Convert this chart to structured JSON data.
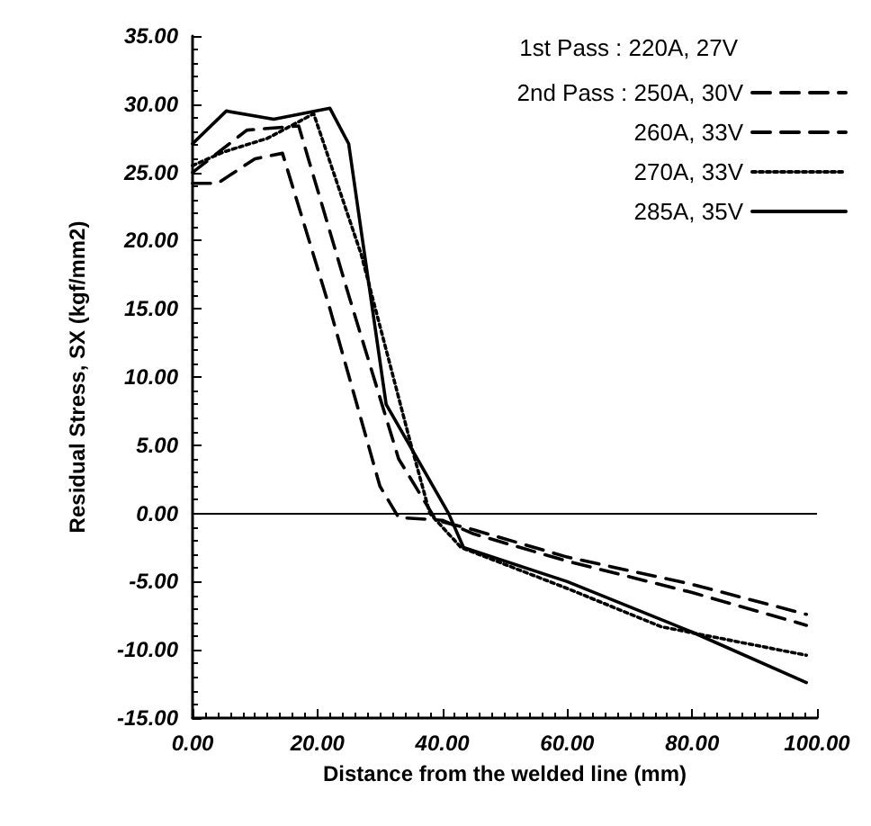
{
  "chart_data": {
    "type": "line",
    "xlabel": "Distance from the welded line (mm)",
    "ylabel": "Residual Stress, SX (kgf/mm2)",
    "legend_title": "1st Pass : 220A, 27V",
    "legend": "top right",
    "grid": false,
    "marker": "none",
    "xlim": [
      0,
      100
    ],
    "xticks": [
      {
        "value": 0,
        "label": "0.00"
      },
      {
        "value": 20,
        "label": "20.00"
      },
      {
        "value": 40,
        "label": "40.00"
      },
      {
        "value": 60,
        "label": "60.00"
      },
      {
        "value": 80,
        "label": "80.00"
      },
      {
        "value": 100,
        "label": "100.00"
      }
    ],
    "ylim": [
      -15,
      35
    ],
    "yticks": [
      {
        "value": -15,
        "label": "-15.00"
      },
      {
        "value": -10,
        "label": "-10.00"
      },
      {
        "value": -5,
        "label": "-5.00"
      },
      {
        "value": 0,
        "label": "0.00"
      },
      {
        "value": 5,
        "label": "5.00"
      },
      {
        "value": 10,
        "label": "10.00"
      },
      {
        "value": 15,
        "label": "15.00"
      },
      {
        "value": 20,
        "label": "20.00"
      },
      {
        "value": 25,
        "label": "25.00"
      },
      {
        "value": 30,
        "label": "30.00"
      },
      {
        "value": 35,
        "label": "35.00"
      }
    ],
    "ref_lines": [
      {
        "axis": "y",
        "value": 0,
        "color": "#000000",
        "line_style": "solid"
      }
    ],
    "series": [
      {
        "name": "2nd Pass : 250A, 30V",
        "color": "#000000",
        "line_style": "dashed",
        "x": [
          0,
          4,
          10,
          14.4,
          22,
          30,
          33,
          40,
          45,
          60,
          80,
          98.3
        ],
        "values": [
          24.2,
          24.2,
          26,
          26.4,
          15,
          2,
          -0.3,
          -0.5,
          -1.5,
          -3.5,
          -5.8,
          -8.2
        ]
      },
      {
        "name": "260A, 33V",
        "color": "#000000",
        "line_style": "dashed",
        "x": [
          0,
          8.7,
          17,
          25,
          33,
          39,
          45,
          60,
          80,
          98.3
        ],
        "values": [
          25,
          28.1,
          28.4,
          16,
          4,
          -0.5,
          -1.2,
          -3.2,
          -5.2,
          -7.4
        ]
      },
      {
        "name": "270A, 33V",
        "color": "#000000",
        "line_style": "dotted",
        "x": [
          0,
          5,
          12,
          19.4,
          27,
          35,
          38,
          43,
          60,
          75,
          98.3
        ],
        "values": [
          25.5,
          26.5,
          27.5,
          29.3,
          19,
          5,
          0,
          -2.5,
          -5.5,
          -8.3,
          -10.4
        ]
      },
      {
        "name": "285A, 35V",
        "color": "#000000",
        "line_style": "solid",
        "x": [
          0,
          5.4,
          13,
          22,
          25,
          31,
          41,
          43.4,
          60,
          80,
          98.3
        ],
        "values": [
          27.1,
          29.5,
          28.9,
          29.7,
          27.1,
          8,
          0,
          -2.5,
          -5,
          -8.7,
          -12.4
        ]
      }
    ]
  }
}
